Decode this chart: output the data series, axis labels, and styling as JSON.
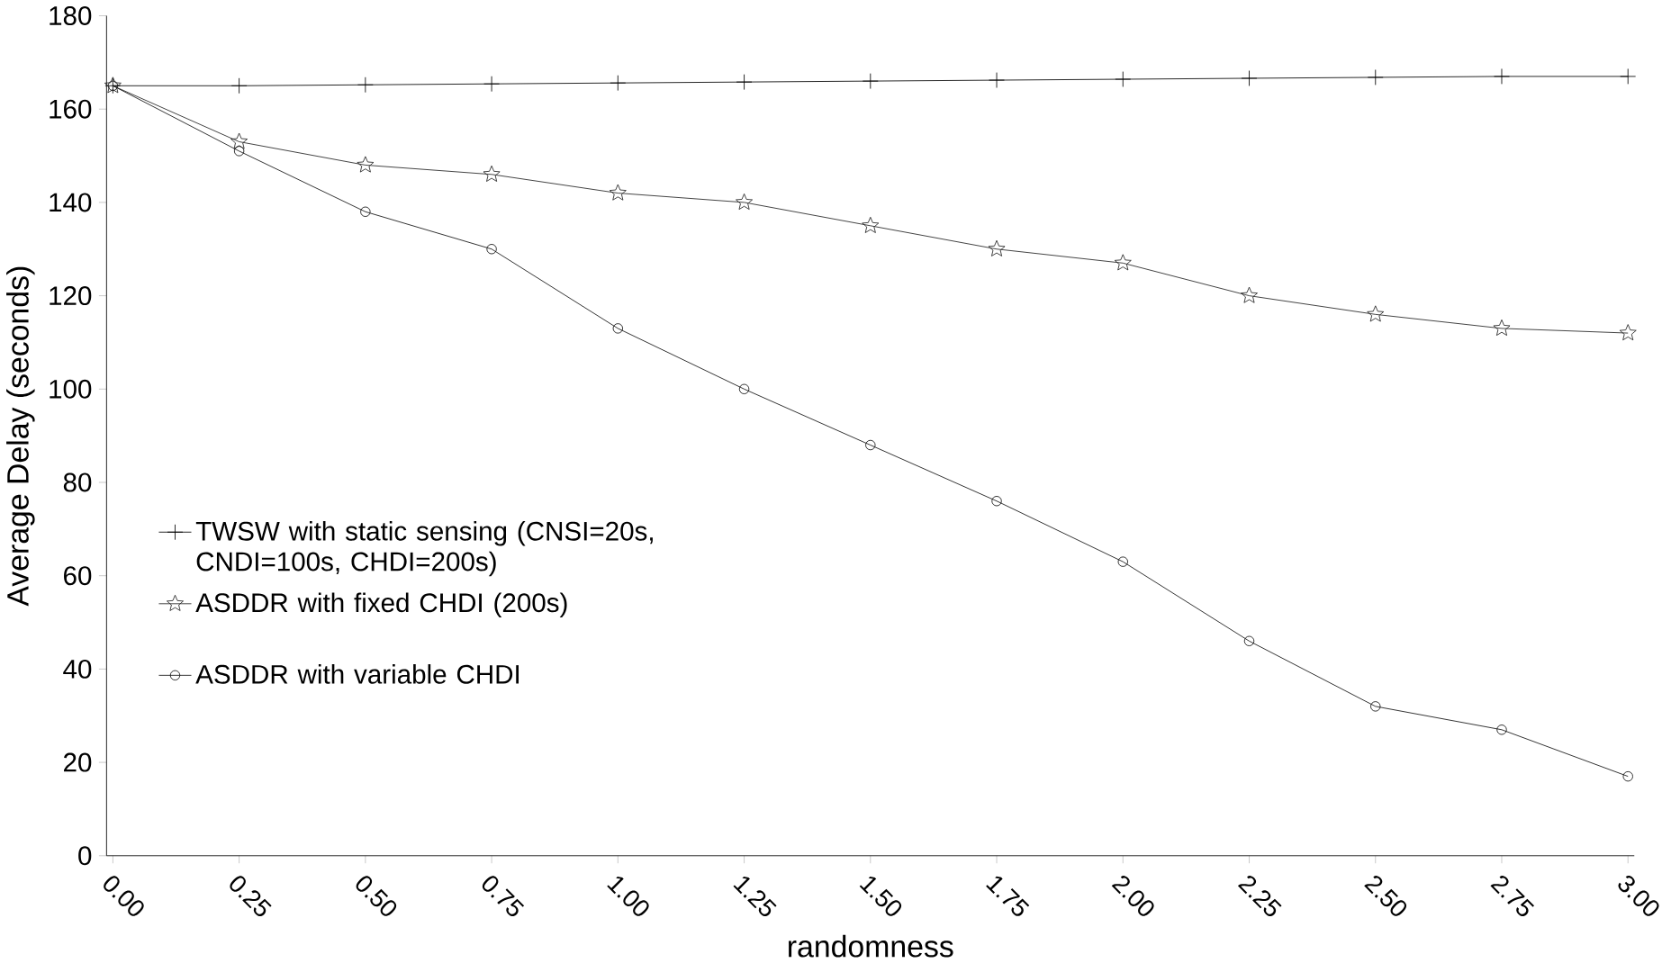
{
  "chart_data": {
    "type": "line",
    "xlabel": "randomness",
    "ylabel": "Average Delay (seconds)",
    "categories": [
      "0.00",
      "0.25",
      "0.50",
      "0.75",
      "1.00",
      "1.25",
      "1.50",
      "1.75",
      "2.00",
      "2.25",
      "2.50",
      "2.75",
      "3.00"
    ],
    "series": [
      {
        "name": "TWSW with static sensing (CNSI=20s, CNDI=100s, CHDI=200s)",
        "color": "#000000",
        "marker": "cross",
        "values": [
          165,
          165,
          165.2,
          165.4,
          165.6,
          165.8,
          166,
          166.2,
          166.4,
          166.6,
          166.8,
          167,
          167
        ]
      },
      {
        "name": "ASDDR with fixed CHDI (200s)",
        "color": "#222222",
        "marker": "star",
        "values": [
          165,
          153,
          148,
          146,
          142,
          140,
          135,
          130,
          127,
          120,
          116,
          113,
          112
        ]
      },
      {
        "name": "ASDDR with variable CHDI",
        "color": "#111111",
        "marker": "circle",
        "values": [
          165,
          151,
          138,
          130,
          113,
          100,
          88,
          76,
          63,
          46,
          32,
          27,
          17
        ]
      }
    ],
    "ylim": [
      0,
      180
    ],
    "yticks": [
      0,
      20,
      40,
      60,
      80,
      100,
      120,
      140,
      160,
      180
    ],
    "grid": false,
    "legend": "left",
    "line_style": "solid"
  }
}
